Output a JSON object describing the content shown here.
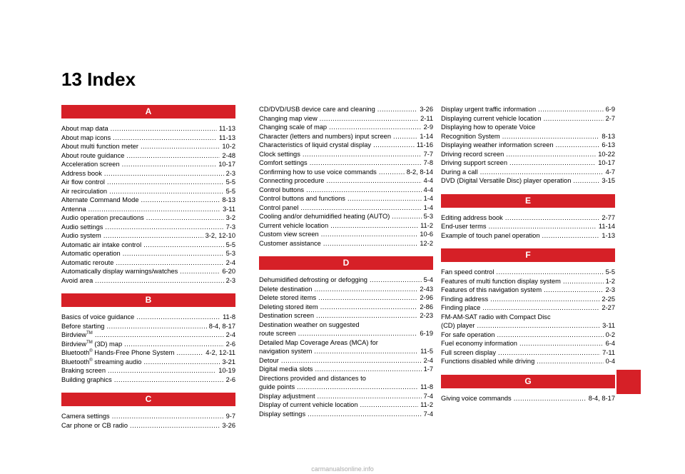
{
  "title": "13 Index",
  "footer": "carmanualsonline.info",
  "accent": "#d62027",
  "columns": [
    [
      {
        "type": "header",
        "text": "A"
      },
      {
        "type": "entry",
        "name": "About map data",
        "pages": "11-13"
      },
      {
        "type": "entry",
        "name": "About map icons",
        "pages": "11-13"
      },
      {
        "type": "entry",
        "name": "About multi function meter",
        "pages": "10-2"
      },
      {
        "type": "entry",
        "name": "About route guidance",
        "pages": "2-48"
      },
      {
        "type": "entry",
        "name": "Acceleration screen",
        "pages": "10-17"
      },
      {
        "type": "entry",
        "name": "Address book",
        "pages": "2-3"
      },
      {
        "type": "entry",
        "name": "Air flow control",
        "pages": "5-5"
      },
      {
        "type": "entry",
        "name": "Air recirculation",
        "pages": "5-5"
      },
      {
        "type": "entry",
        "name": "Alternate Command Mode",
        "pages": "8-13"
      },
      {
        "type": "entry",
        "name": "Antenna",
        "pages": "3-11"
      },
      {
        "type": "entry",
        "name": "Audio operation precautions",
        "pages": "3-2"
      },
      {
        "type": "entry",
        "name": "Audio settings",
        "pages": "7-3"
      },
      {
        "type": "entry",
        "name": "Audio system",
        "pages": "3-2, 12-10"
      },
      {
        "type": "entry",
        "name": "Automatic air intake control",
        "pages": "5-5"
      },
      {
        "type": "entry",
        "name": "Automatic operation",
        "pages": "5-3"
      },
      {
        "type": "entry",
        "name": "Automatic reroute",
        "pages": "2-4"
      },
      {
        "type": "entry",
        "name": "Automatically display warnings/watches",
        "pages": "6-20"
      },
      {
        "type": "entry",
        "name": "Avoid area",
        "pages": "2-3"
      },
      {
        "type": "header",
        "text": "B"
      },
      {
        "type": "entry",
        "name": "Basics of voice guidance",
        "pages": "11-8"
      },
      {
        "type": "entry",
        "name": "Before starting",
        "pages": "8-4, 8-17"
      },
      {
        "type": "entry",
        "name": "Birdview",
        "sup": "TM",
        "pages": "2-4"
      },
      {
        "type": "entry",
        "name": "Birdview",
        "sup": "TM",
        "rest": " (3D) map",
        "pages": "2-6"
      },
      {
        "type": "entry",
        "name": "Bluetooth",
        "sup": "®",
        "rest": " Hands-Free Phone System",
        "pages": "4-2, 12-11"
      },
      {
        "type": "entry",
        "name": "Bluetooth",
        "sup": "®",
        "rest": " streaming audio",
        "pages": "3-21"
      },
      {
        "type": "entry",
        "name": "Braking screen",
        "pages": "10-19"
      },
      {
        "type": "entry",
        "name": "Building graphics",
        "pages": "2-6"
      },
      {
        "type": "header",
        "text": "C"
      },
      {
        "type": "entry",
        "name": "Camera settings",
        "pages": "9-7"
      },
      {
        "type": "entry",
        "name": "Car phone or CB radio",
        "pages": "3-26"
      }
    ],
    [
      {
        "type": "entry",
        "name": "CD/DVD/USB device care and cleaning",
        "pages": "3-26"
      },
      {
        "type": "entry",
        "name": "Changing map view",
        "pages": "2-11"
      },
      {
        "type": "entry",
        "name": "Changing scale of map",
        "pages": "2-9"
      },
      {
        "type": "entry",
        "name": "Character (letters and numbers) input screen",
        "pages": "1-14"
      },
      {
        "type": "entry",
        "name": "Characteristics of liquid crystal display",
        "pages": "11-16"
      },
      {
        "type": "entry",
        "name": "Clock settings",
        "pages": "7-7"
      },
      {
        "type": "entry",
        "name": "Comfort settings",
        "pages": "7-8"
      },
      {
        "type": "entry",
        "name": "Confirming how to use voice commands",
        "pages": "8-2, 8-14"
      },
      {
        "type": "entry",
        "name": "Connecting procedure",
        "pages": "4-4"
      },
      {
        "type": "entry",
        "name": "Control buttons",
        "pages": "4-4"
      },
      {
        "type": "entry",
        "name": "Control buttons and functions",
        "pages": "1-4"
      },
      {
        "type": "entry",
        "name": "Control panel",
        "pages": "1-4"
      },
      {
        "type": "entry",
        "name": "Cooling and/or dehumidified heating (AUTO)",
        "pages": "5-3"
      },
      {
        "type": "entry",
        "name": "Current vehicle location",
        "pages": "11-2"
      },
      {
        "type": "entry",
        "name": "Custom view screen",
        "pages": "10-6"
      },
      {
        "type": "entry",
        "name": "Customer assistance",
        "pages": "12-2"
      },
      {
        "type": "header",
        "text": "D"
      },
      {
        "type": "entry",
        "name": "Dehumidified defrosting or defogging",
        "pages": "5-4"
      },
      {
        "type": "entry",
        "name": "Delete destination",
        "pages": "2-43"
      },
      {
        "type": "entry",
        "name": "Delete stored items",
        "pages": "2-96"
      },
      {
        "type": "entry",
        "name": "Deleting stored item",
        "pages": "2-86"
      },
      {
        "type": "entry",
        "name": "Destination screen",
        "pages": "2-23"
      },
      {
        "type": "cont",
        "name": "Destination weather on suggested"
      },
      {
        "type": "entry",
        "name": "route screen",
        "pages": "6-19"
      },
      {
        "type": "cont",
        "name": "Detailed Map Coverage Areas (MCA) for"
      },
      {
        "type": "entry",
        "name": "navigation system",
        "pages": "11-5"
      },
      {
        "type": "entry",
        "name": "Detour",
        "pages": "2-4"
      },
      {
        "type": "entry",
        "name": "Digital media slots",
        "pages": "1-7"
      },
      {
        "type": "cont",
        "name": "Directions provided and distances to"
      },
      {
        "type": "entry",
        "name": "guide points",
        "pages": "11-8"
      },
      {
        "type": "entry",
        "name": "Display adjustment",
        "pages": "7-4"
      },
      {
        "type": "entry",
        "name": "Display of current vehicle location",
        "pages": "11-2"
      },
      {
        "type": "entry",
        "name": "Display settings",
        "pages": "7-4"
      }
    ],
    [
      {
        "type": "entry",
        "name": "Display urgent traffic information",
        "pages": "6-9"
      },
      {
        "type": "entry",
        "name": "Displaying current vehicle location",
        "pages": "2-7"
      },
      {
        "type": "cont",
        "name": "Displaying how to operate Voice"
      },
      {
        "type": "entry",
        "name": "Recognition System",
        "pages": "8-13"
      },
      {
        "type": "entry",
        "name": "Displaying weather information screen",
        "pages": "6-13"
      },
      {
        "type": "entry",
        "name": "Driving record screen",
        "pages": "10-22"
      },
      {
        "type": "entry",
        "name": "Driving support screen",
        "pages": "10-17"
      },
      {
        "type": "entry",
        "name": "During a call",
        "pages": "4-7"
      },
      {
        "type": "entry",
        "name": "DVD (Digital Versatile Disc) player operation",
        "pages": "3-15"
      },
      {
        "type": "header",
        "text": "E"
      },
      {
        "type": "entry",
        "name": "Editing address book",
        "pages": "2-77"
      },
      {
        "type": "entry",
        "name": "End-user terms",
        "pages": "11-14"
      },
      {
        "type": "entry",
        "name": "Example of touch panel operation",
        "pages": "1-13"
      },
      {
        "type": "header",
        "text": "F"
      },
      {
        "type": "entry",
        "name": "Fan speed control",
        "pages": "5-5"
      },
      {
        "type": "entry",
        "name": "Features of multi function display system",
        "pages": "1-2"
      },
      {
        "type": "entry",
        "name": "Features of this navigation system",
        "pages": "2-3"
      },
      {
        "type": "entry",
        "name": "Finding address",
        "pages": "2-25"
      },
      {
        "type": "entry",
        "name": "Finding place",
        "pages": "2-27"
      },
      {
        "type": "cont",
        "name": "FM-AM-SAT radio with Compact Disc"
      },
      {
        "type": "entry",
        "name": "(CD) player",
        "pages": "3-11"
      },
      {
        "type": "entry",
        "name": "For safe operation",
        "pages": "0-2"
      },
      {
        "type": "entry",
        "name": "Fuel economy information",
        "pages": "6-4"
      },
      {
        "type": "entry",
        "name": "Full screen display",
        "pages": "7-11"
      },
      {
        "type": "entry",
        "name": "Functions disabled while driving",
        "pages": "0-4"
      },
      {
        "type": "header",
        "text": "G"
      },
      {
        "type": "entry",
        "name": "Giving voice commands",
        "pages": "8-4, 8-17"
      }
    ]
  ]
}
